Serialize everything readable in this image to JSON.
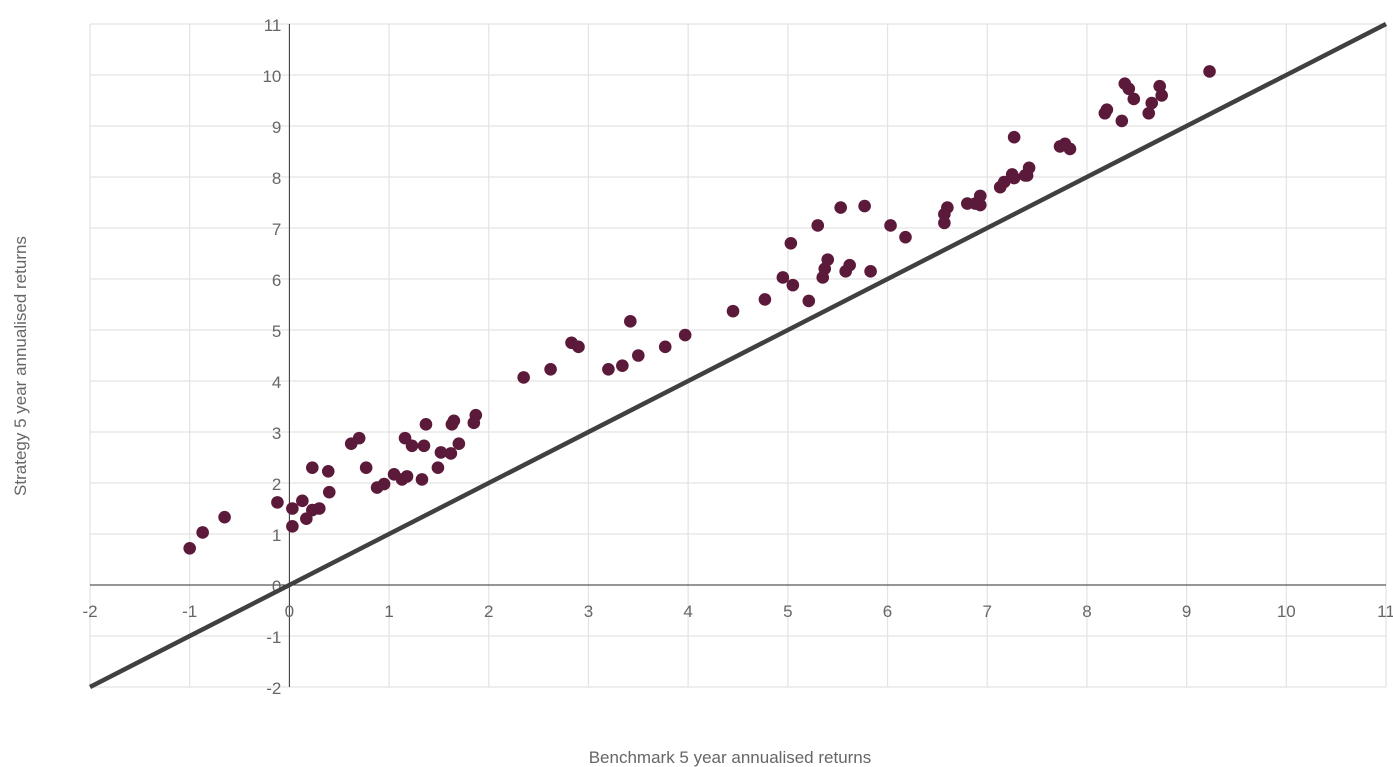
{
  "chart_data": {
    "type": "scatter",
    "xlabel": "Benchmark 5 year annualised returns",
    "ylabel": "Strategy 5 year annualised returns",
    "xlim": [
      -2,
      11
    ],
    "ylim": [
      -2,
      11
    ],
    "x_ticks": [
      "-2",
      "-1",
      "0",
      "1",
      "2",
      "3",
      "4",
      "5",
      "6",
      "7",
      "8",
      "9",
      "10",
      "11"
    ],
    "y_ticks": [
      "-2",
      "-1",
      "0",
      "1",
      "2",
      "3",
      "4",
      "5",
      "6",
      "7",
      "8",
      "9",
      "10",
      "11"
    ],
    "grid": true,
    "reference_line": {
      "from": [
        -2,
        -2
      ],
      "to": [
        11,
        11
      ],
      "color": "#404040"
    },
    "point_color": "#5c1a3b",
    "series": [
      {
        "points": [
          [
            -1.0,
            0.72
          ],
          [
            -0.87,
            1.03
          ],
          [
            -0.65,
            1.33
          ],
          [
            -0.12,
            1.62
          ],
          [
            0.03,
            1.5
          ],
          [
            0.03,
            1.15
          ],
          [
            0.13,
            1.65
          ],
          [
            0.17,
            1.3
          ],
          [
            0.23,
            1.47
          ],
          [
            0.23,
            2.3
          ],
          [
            0.3,
            1.5
          ],
          [
            0.39,
            2.23
          ],
          [
            0.4,
            1.82
          ],
          [
            0.62,
            2.77
          ],
          [
            0.7,
            2.88
          ],
          [
            0.77,
            2.3
          ],
          [
            0.88,
            1.91
          ],
          [
            0.95,
            1.98
          ],
          [
            1.05,
            2.17
          ],
          [
            1.13,
            2.07
          ],
          [
            1.16,
            2.88
          ],
          [
            1.18,
            2.13
          ],
          [
            1.23,
            2.73
          ],
          [
            1.33,
            2.07
          ],
          [
            1.35,
            2.73
          ],
          [
            1.37,
            3.15
          ],
          [
            1.49,
            2.3
          ],
          [
            1.52,
            2.6
          ],
          [
            1.62,
            2.58
          ],
          [
            1.63,
            3.15
          ],
          [
            1.65,
            3.22
          ],
          [
            1.7,
            2.77
          ],
          [
            1.85,
            3.18
          ],
          [
            1.87,
            3.33
          ],
          [
            2.35,
            4.07
          ],
          [
            2.62,
            4.23
          ],
          [
            2.83,
            4.75
          ],
          [
            2.9,
            4.67
          ],
          [
            3.2,
            4.23
          ],
          [
            3.34,
            4.3
          ],
          [
            3.42,
            5.17
          ],
          [
            3.5,
            4.5
          ],
          [
            3.77,
            4.67
          ],
          [
            3.97,
            4.9
          ],
          [
            4.45,
            5.37
          ],
          [
            4.77,
            5.6
          ],
          [
            4.95,
            6.03
          ],
          [
            5.03,
            6.7
          ],
          [
            5.05,
            5.88
          ],
          [
            5.21,
            5.57
          ],
          [
            5.3,
            7.05
          ],
          [
            5.35,
            6.03
          ],
          [
            5.37,
            6.2
          ],
          [
            5.4,
            6.38
          ],
          [
            5.53,
            7.4
          ],
          [
            5.58,
            6.15
          ],
          [
            5.62,
            6.27
          ],
          [
            5.77,
            7.43
          ],
          [
            5.83,
            6.15
          ],
          [
            6.03,
            7.05
          ],
          [
            6.18,
            6.82
          ],
          [
            6.57,
            7.1
          ],
          [
            6.57,
            7.27
          ],
          [
            6.6,
            7.4
          ],
          [
            6.8,
            7.48
          ],
          [
            6.88,
            7.48
          ],
          [
            6.93,
            7.45
          ],
          [
            6.93,
            7.63
          ],
          [
            7.13,
            7.8
          ],
          [
            7.17,
            7.9
          ],
          [
            7.25,
            8.05
          ],
          [
            7.27,
            7.98
          ],
          [
            7.27,
            8.78
          ],
          [
            7.38,
            8.03
          ],
          [
            7.4,
            8.03
          ],
          [
            7.42,
            8.18
          ],
          [
            7.73,
            8.6
          ],
          [
            7.78,
            8.65
          ],
          [
            7.83,
            8.55
          ],
          [
            8.18,
            9.25
          ],
          [
            8.2,
            9.32
          ],
          [
            8.35,
            9.1
          ],
          [
            8.38,
            9.83
          ],
          [
            8.42,
            9.73
          ],
          [
            8.47,
            9.53
          ],
          [
            8.62,
            9.25
          ],
          [
            8.65,
            9.45
          ],
          [
            8.73,
            9.78
          ],
          [
            8.75,
            9.6
          ],
          [
            9.23,
            10.07
          ]
        ]
      }
    ]
  }
}
